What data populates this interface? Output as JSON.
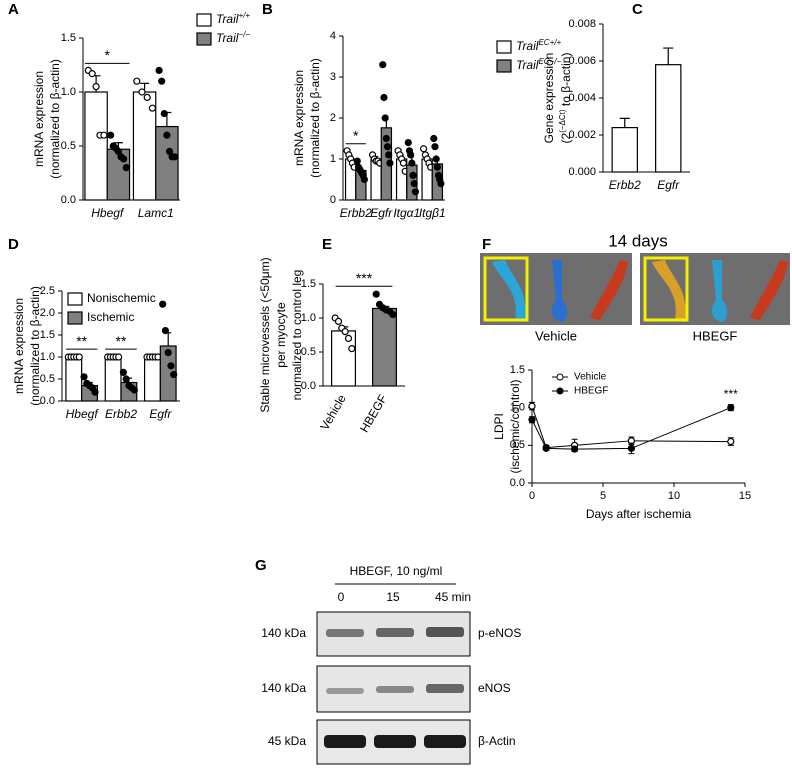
{
  "chart_data": [
    {
      "type": "bar",
      "panel": "A",
      "ylabel": [
        "mRNA expression",
        "(normalized to β-actin)"
      ],
      "categories": [
        "Hbegf",
        "Lamc1"
      ],
      "italic_categories": true,
      "ylim": [
        0,
        1.5
      ],
      "yticks": [
        {
          "value": 0,
          "label": "0.0"
        },
        {
          "value": 0.5,
          "label": "0.5"
        },
        {
          "value": 1,
          "label": "1.0"
        },
        {
          "value": 1.5,
          "label": "1.5"
        }
      ],
      "series": [
        {
          "name": [
            "Trail",
            "+/+"
          ],
          "color": "#ffffff",
          "marker": "open",
          "values": [
            1.0,
            1.0
          ],
          "errors": [
            0.15,
            0.08
          ],
          "points": [
            [
              1.2,
              1.17,
              1.05,
              0.6,
              0.6
            ],
            [
              1.1,
              1.0,
              0.95,
              0.85
            ]
          ]
        },
        {
          "name": [
            "Trail",
            "−/−"
          ],
          "color": "#808080",
          "marker": "filled",
          "values": [
            0.47,
            0.68
          ],
          "errors": [
            0.06,
            0.13
          ],
          "points": [
            [
              0.6,
              0.5,
              0.48,
              0.45,
              0.4,
              0.38,
              0.3
            ],
            [
              1.2,
              1.1,
              0.8,
              0.6,
              0.45,
              0.4,
              0.4
            ]
          ]
        }
      ],
      "significance": [
        "*",
        null
      ]
    },
    {
      "type": "bar",
      "panel": "B",
      "ylabel": [
        "mRNA expression",
        "(normalized to β-actin)"
      ],
      "categories": [
        "Erbb2",
        "Egfr",
        "Itgα1",
        "Itgβ1"
      ],
      "italic_categories": true,
      "ylim": [
        0,
        4
      ],
      "yticks": [
        0,
        1,
        2,
        3,
        4
      ],
      "series": [
        {
          "name": [
            "Trail",
            "EC+/+"
          ],
          "color": "#ffffff",
          "marker": "open",
          "values": [
            1.0,
            1.0,
            1.0,
            1.0
          ],
          "errors": [
            0.07,
            0.06,
            0.1,
            0.1
          ],
          "points": [
            [
              1.2,
              1.1,
              1.0,
              0.9,
              0.8
            ],
            [
              1.1,
              1.0,
              0.95,
              0.95,
              0.9
            ],
            [
              1.2,
              1.1,
              1.0,
              0.9,
              0.7
            ],
            [
              1.25,
              1.1,
              1.0,
              0.9,
              0.8
            ]
          ]
        },
        {
          "name": [
            "Trail",
            "EC−/−"
          ],
          "color": "#808080",
          "marker": "filled",
          "values": [
            0.72,
            1.76,
            0.85,
            0.88
          ],
          "errors": [
            0.06,
            0.28,
            0.2,
            0.15
          ],
          "points": [
            [
              0.95,
              0.8,
              0.75,
              0.7,
              0.65,
              0.6,
              0.5
            ],
            [
              3.3,
              2.5,
              2.0,
              1.5,
              1.3,
              1.1,
              0.9
            ],
            [
              1.4,
              1.2,
              1.1,
              0.9,
              0.6,
              0.4,
              0.2
            ],
            [
              1.5,
              1.3,
              1.0,
              0.8,
              0.6,
              0.5,
              0.4
            ]
          ]
        }
      ],
      "significance": [
        "*",
        null,
        null,
        null
      ]
    },
    {
      "type": "bar",
      "panel": "C",
      "ylabel": [
        "Gene expression",
        [
          "(2",
          "(−ΔCt)",
          " to β-actin)"
        ]
      ],
      "categories": [
        "Erbb2",
        "Egfr"
      ],
      "italic_categories": true,
      "ylim": [
        0,
        0.008
      ],
      "yticks": [
        {
          "value": 0,
          "label": "0.000"
        },
        {
          "value": 0.002,
          "label": "0.002"
        },
        {
          "value": 0.004,
          "label": "0.004"
        },
        {
          "value": 0.006,
          "label": "0.006"
        },
        {
          "value": 0.008,
          "label": "0.008"
        }
      ],
      "series": [
        {
          "color": "#ffffff",
          "values": [
            0.0024,
            0.0058
          ],
          "errors": [
            0.0005,
            0.0009
          ]
        }
      ]
    },
    {
      "type": "bar",
      "panel": "D",
      "ylabel": [
        "mRNA expression",
        "(normalized to β-actin)"
      ],
      "categories": [
        "Hbegf",
        "Erbb2",
        "Egfr"
      ],
      "italic_categories": true,
      "ylim": [
        0,
        2.5
      ],
      "yticks": [
        {
          "value": 0,
          "label": "0.0"
        },
        {
          "value": 0.5,
          "label": "0.5"
        },
        {
          "value": 1,
          "label": "1.0"
        },
        {
          "value": 1.5,
          "label": "1.5"
        },
        {
          "value": 2,
          "label": "2.0"
        },
        {
          "value": 2.5,
          "label": "2.5"
        }
      ],
      "series": [
        {
          "name": [
            "Nonischemic"
          ],
          "color": "#ffffff",
          "marker": "open",
          "values": [
            1.0,
            1.0,
            1.0
          ],
          "errors": [
            0.02,
            0.02,
            0.02
          ],
          "points": [
            [
              1,
              1,
              1,
              1,
              1
            ],
            [
              1,
              1,
              1,
              1,
              1
            ],
            [
              1,
              1,
              1,
              1,
              1
            ]
          ]
        },
        {
          "name": [
            "Ischemic"
          ],
          "color": "#808080",
          "marker": "filled",
          "values": [
            0.35,
            0.42,
            1.25
          ],
          "errors": [
            0.07,
            0.1,
            0.3
          ],
          "points": [
            [
              0.55,
              0.4,
              0.35,
              0.3,
              0.2
            ],
            [
              0.65,
              0.5,
              0.35,
              0.3,
              0.25
            ],
            [
              2.2,
              1.6,
              1.1,
              0.8,
              0.6
            ]
          ]
        }
      ],
      "significance": [
        "**",
        "**",
        null
      ]
    },
    {
      "type": "bar",
      "panel": "E",
      "ylabel": [
        "Stable microvessels (<50μm)",
        "per myocyte",
        "normalized to control leg"
      ],
      "categories": [
        "Vehicle",
        "HBEGF"
      ],
      "rotate_categories": true,
      "ylim": [
        0,
        1.5
      ],
      "yticks": [
        {
          "value": 0,
          "label": "0.0"
        },
        {
          "value": 0.5,
          "label": "0.5"
        },
        {
          "value": 1,
          "label": "1.0"
        },
        {
          "value": 1.5,
          "label": "1.5"
        }
      ],
      "series": [
        {
          "colors": [
            "#ffffff",
            "#808080"
          ],
          "markers": [
            "open",
            "filled"
          ],
          "values": [
            0.81,
            1.14
          ],
          "errors": [
            0.06,
            0.03
          ],
          "points": [
            [
              1.0,
              0.95,
              0.85,
              0.8,
              0.7,
              0.55
            ],
            [
              1.35,
              1.2,
              1.15,
              1.12,
              1.1,
              1.05
            ]
          ]
        }
      ],
      "significance_span": "***"
    },
    {
      "type": "line",
      "panel": "F",
      "ylabel": [
        "LDPI",
        "(ischemic/control)"
      ],
      "xlabel": "Days after ischemia",
      "x": [
        0,
        1,
        3,
        7,
        14
      ],
      "xlim": [
        0,
        15
      ],
      "xticks": [
        0,
        5,
        10,
        15
      ],
      "ylim": [
        0,
        1.5
      ],
      "yticks": [
        {
          "value": 0,
          "label": "0.0"
        },
        {
          "value": 0.5,
          "label": "0.5"
        },
        {
          "value": 1,
          "label": "1.0"
        },
        {
          "value": 1.5,
          "label": "1.5"
        }
      ],
      "series": [
        {
          "name": "Vehicle",
          "color": "#000000",
          "marker": "open",
          "values": [
            1.02,
            0.47,
            0.5,
            0.56,
            0.55
          ],
          "errors": [
            0.05,
            0.03,
            0.08,
            0.05,
            0.05
          ]
        },
        {
          "name": "HBEGF",
          "color": "#000000",
          "marker": "filled",
          "values": [
            0.84,
            0.46,
            0.45,
            0.46,
            1.0
          ],
          "errors": [
            0.04,
            0.02,
            0.03,
            0.07,
            0.04
          ]
        }
      ],
      "annotation": "***"
    }
  ],
  "ldpi_images": {
    "title": "14 days",
    "groups": [
      "Vehicle",
      "HBEGF"
    ]
  },
  "blot": {
    "panel": "G",
    "treatment": "HBEGF, 10 ng/ml",
    "timepoints": [
      "0",
      "15",
      "45 min"
    ],
    "rows": [
      {
        "size": "140 kDa",
        "protein": "p-eNOS"
      },
      {
        "size": "140 kDa",
        "protein": "eNOS"
      },
      {
        "size": "45 kDa",
        "protein": "β-Actin"
      }
    ]
  }
}
